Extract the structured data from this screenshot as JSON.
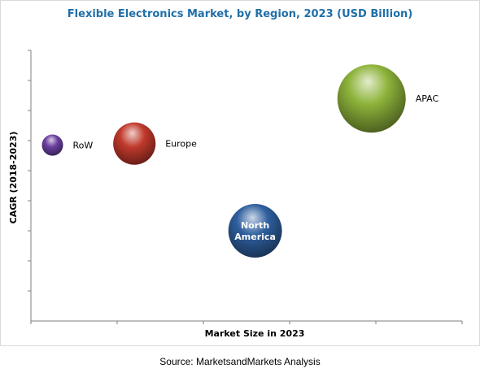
{
  "chart_data": {
    "type": "scatter",
    "title": "Flexible Electronics Market, by Region, 2023 (USD Billion)",
    "xlabel": "Market Size in 2023",
    "ylabel": "CAGR (2018-2023)",
    "source": "Source: MarketsandMarkets Analysis",
    "grid": false,
    "series": [
      {
        "points": [
          {
            "label": "RoW",
            "x": 0.25,
            "y": 5.85,
            "size": 0.25,
            "color": "#6a3fa0"
          },
          {
            "label": "Europe",
            "x": 1.2,
            "y": 5.9,
            "size": 1.0,
            "color": "#c0392b"
          },
          {
            "label": "North America",
            "label_lines": [
              "North",
              "America"
            ],
            "x": 2.6,
            "y": 3.0,
            "size": 1.6,
            "color": "#2e5f9e"
          },
          {
            "label": "APAC",
            "x": 3.95,
            "y": 7.4,
            "size": 2.6,
            "color": "#8db33a"
          }
        ]
      }
    ],
    "xlim": [
      0,
      5
    ],
    "ylim": [
      0,
      9
    ]
  }
}
